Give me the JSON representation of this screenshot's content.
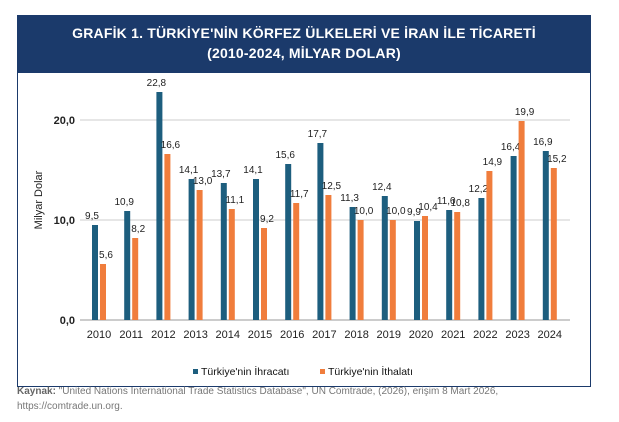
{
  "title_line1": "GRAFİK 1. TÜRKİYE'NİN KÖRFEZ ÜLKELERİ VE İRAN İLE TİCARETİ",
  "title_line2": "(2010-2024, MİLYAR DOLAR)",
  "source_label": "Kaynak:",
  "source_text": " \"United Nations International Trade Statistics Database\", UN Comtrade, (2026), erişim 8 Mart 2026, https://comtrade.un.org.",
  "chart_data": {
    "type": "bar",
    "title": "GRAFİK 1. TÜRKİYE'NİN KÖRFEZ ÜLKELERİ VE İRAN İLE TİCARETİ (2010-2024, MİLYAR DOLAR)",
    "xlabel": "",
    "ylabel": "Milyar Dolar",
    "ylim": [
      0,
      20
    ],
    "yticks": [
      "0,0",
      "10,0",
      "20,0"
    ],
    "grid": true,
    "legend": "bottom",
    "categories": [
      "2010",
      "2011",
      "2012",
      "2013",
      "2014",
      "2015",
      "2016",
      "2017",
      "2018",
      "2019",
      "2020",
      "2021",
      "2022",
      "2023",
      "2024"
    ],
    "series": [
      {
        "name": "Türkiye'nin İhracatı",
        "color": "#1d5e7e",
        "values": [
          9.5,
          10.9,
          22.8,
          14.1,
          13.7,
          14.1,
          15.6,
          17.7,
          11.3,
          12.4,
          9.9,
          11.0,
          12.2,
          16.4,
          16.9
        ],
        "labels": [
          "9,5",
          "10,9",
          "22,8",
          "14,1",
          "13,7",
          "14,1",
          "15,6",
          "17,7",
          "11,3",
          "12,4",
          "9,9",
          "11,0",
          "12,2",
          "16,4",
          "16,9"
        ]
      },
      {
        "name": "Türkiye'nin İthalatı",
        "color": "#f07d3c",
        "values": [
          5.6,
          8.2,
          16.6,
          13.0,
          11.1,
          9.2,
          11.7,
          12.5,
          10.0,
          10.0,
          10.4,
          10.8,
          14.9,
          19.9,
          15.2
        ],
        "labels": [
          "5,6",
          "8,2",
          "16,6",
          "13,0",
          "11,1",
          "9,2",
          "11,7",
          "12,5",
          "10,0",
          "10,0",
          "10,4",
          "10,8",
          "14,9",
          "19,9",
          "15,2"
        ]
      }
    ]
  }
}
